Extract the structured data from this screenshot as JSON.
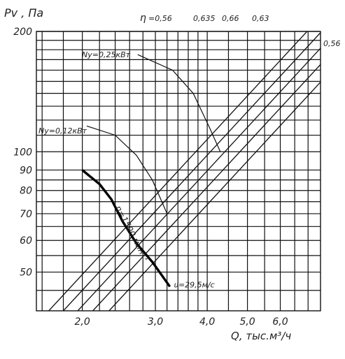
{
  "chart_data": {
    "type": "line",
    "title": "",
    "ylabel": "Pv , Па",
    "xlabel": "Q, тыс.м³/ч",
    "x_scale": "log",
    "y_scale": "log",
    "xlim": [
      1.55,
      7.5
    ],
    "ylim": [
      40,
      200
    ],
    "x_ticks": [
      {
        "value": 2.0,
        "label": "2,0"
      },
      {
        "value": 3.0,
        "label": "3,0"
      },
      {
        "value": 4.0,
        "label": "4,0"
      },
      {
        "value": 5.0,
        "label": "5,0"
      },
      {
        "value": 6.0,
        "label": "6,0"
      }
    ],
    "y_ticks": [
      {
        "value": 50,
        "label": "50"
      },
      {
        "value": 60,
        "label": "60"
      },
      {
        "value": 70,
        "label": "70"
      },
      {
        "value": 80,
        "label": "80"
      },
      {
        "value": 90,
        "label": "90"
      },
      {
        "value": 100,
        "label": "100"
      },
      {
        "value": 200,
        "label": "200"
      }
    ],
    "grid": true,
    "efficiency_lines": {
      "eta_prefix": "η",
      "lines": [
        {
          "label": "=0,56",
          "x_at_ymin": 1.66
        },
        {
          "label": "0,635",
          "x_at_ymin": 1.8
        },
        {
          "label": "0,66",
          "x_at_ymin": 1.95
        },
        {
          "label": "0,63",
          "x_at_ymin": 2.12
        },
        {
          "label": "0,56",
          "x_at_ymin": 2.32
        }
      ]
    },
    "power_curves": [
      {
        "label": "Ny=0,25кВт",
        "points": [
          [
            2.72,
            175
          ],
          [
            3.3,
            160
          ],
          [
            3.7,
            140
          ],
          [
            4.05,
            115
          ],
          [
            4.3,
            100
          ]
        ]
      },
      {
        "label": "Ny=0,12кВт",
        "points": [
          [
            2.05,
            116
          ],
          [
            2.4,
            110
          ],
          [
            2.7,
            98
          ],
          [
            2.95,
            85
          ],
          [
            3.2,
            70
          ]
        ]
      }
    ],
    "series": [
      {
        "name": "n=1500 мин⁻¹",
        "x": [
          2.0,
          2.2,
          2.35,
          2.5,
          2.7,
          2.95,
          3.25
        ],
        "y": [
          90,
          83,
          76,
          67,
          59,
          53,
          46
        ]
      }
    ],
    "annotations": [
      {
        "text": "υ=29,5м/с",
        "x": 3.3,
        "y": 45
      }
    ]
  }
}
